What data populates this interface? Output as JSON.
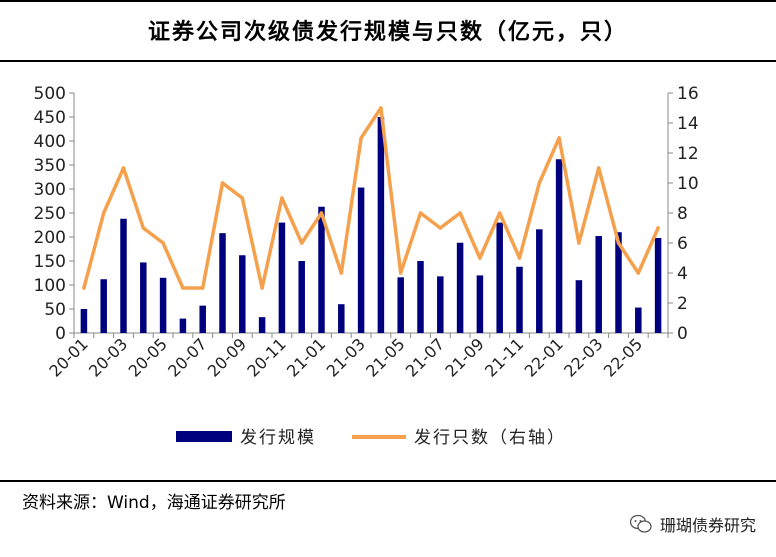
{
  "title": "证券公司次级债发行规模与只数（亿元，只）",
  "source": "资料来源：Wind，海通证券研究所",
  "watermark": "珊瑚债券研究",
  "chart_data": {
    "type": "bar+line",
    "title": "",
    "xlabel": "",
    "ylabel": "",
    "categories": [
      "20-01",
      "20-02",
      "20-03",
      "20-04",
      "20-05",
      "20-06",
      "20-07",
      "20-08",
      "20-09",
      "20-10",
      "20-11",
      "20-12",
      "21-01",
      "21-02",
      "21-03",
      "21-04",
      "21-05",
      "21-06",
      "21-07",
      "21-08",
      "21-09",
      "21-10",
      "21-11",
      "21-12",
      "22-01",
      "22-02",
      "22-03",
      "22-04",
      "22-05",
      "22-06"
    ],
    "x_tick_labels": [
      "20-01",
      "20-03",
      "20-05",
      "20-07",
      "20-09",
      "20-11",
      "21-01",
      "21-03",
      "21-05",
      "21-07",
      "21-09",
      "21-11",
      "22-01",
      "22-03",
      "22-05"
    ],
    "y_left": {
      "min": 0,
      "max": 500,
      "step": 50
    },
    "y_right": {
      "min": 0,
      "max": 16,
      "step": 2
    },
    "series": [
      {
        "name": "发行规模",
        "type": "bar",
        "axis": "left",
        "color": "#00007f",
        "values": [
          50,
          112,
          238,
          147,
          115,
          30,
          57,
          208,
          162,
          33,
          230,
          150,
          263,
          60,
          303,
          450,
          116,
          150,
          118,
          188,
          120,
          230,
          138,
          216,
          362,
          110,
          202,
          210,
          53,
          198
        ]
      },
      {
        "name": "发行只数（右轴）",
        "type": "line",
        "axis": "right",
        "color": "#f5a04c",
        "values": [
          3,
          8,
          11,
          7,
          6,
          3,
          3,
          10,
          9,
          3,
          9,
          6,
          8,
          4,
          13,
          15,
          4,
          8,
          7,
          8,
          5,
          8,
          5,
          10,
          13,
          6,
          11,
          6,
          4,
          7
        ]
      }
    ],
    "legend": "bottom",
    "grid": false
  }
}
